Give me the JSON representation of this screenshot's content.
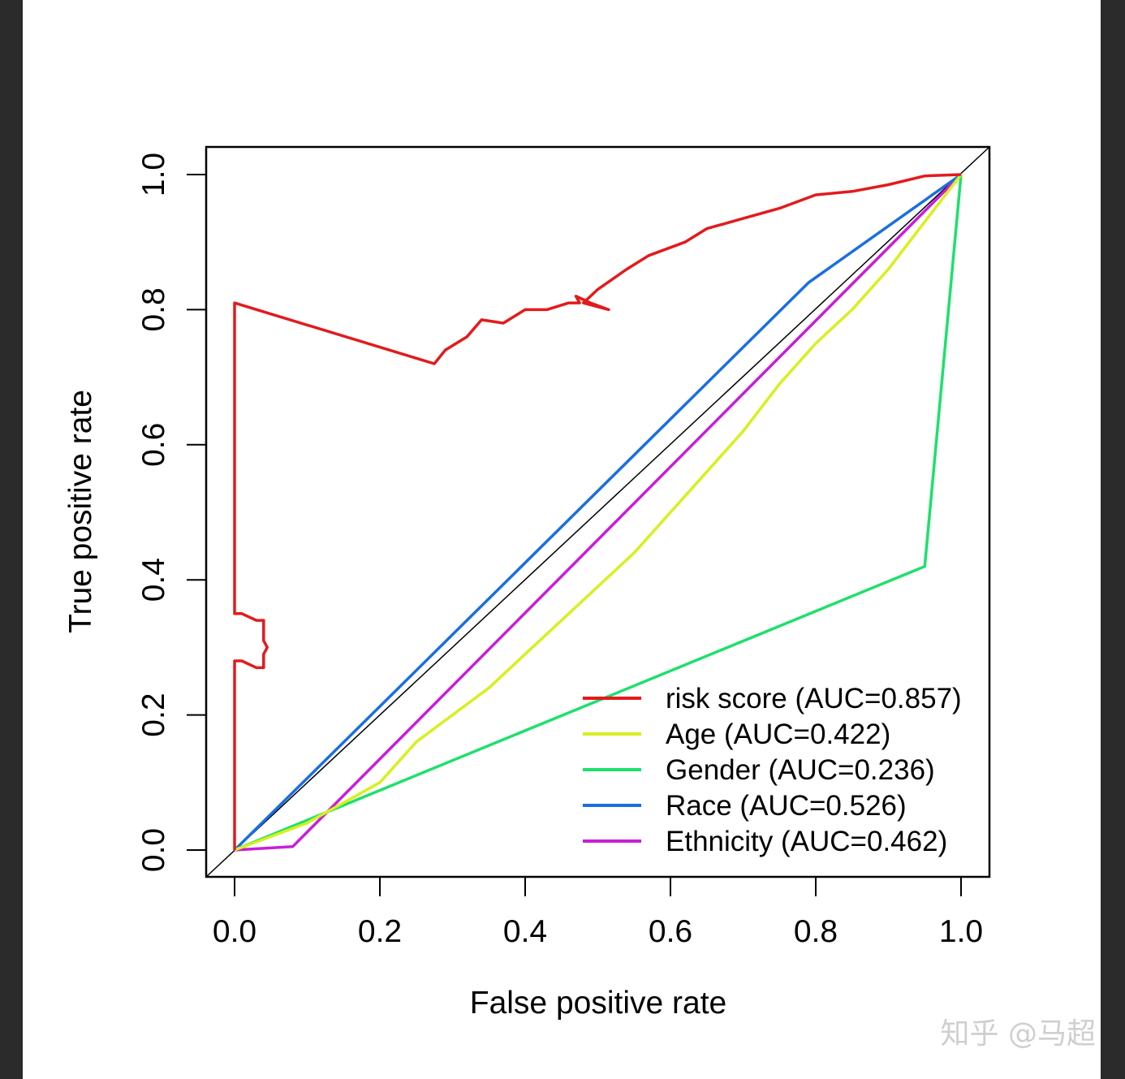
{
  "chart_data": {
    "type": "line",
    "title": "",
    "xlabel": "False positive rate",
    "ylabel": "True positive rate",
    "xlim": [
      0,
      1
    ],
    "ylim": [
      0,
      1
    ],
    "xticks": [
      0.0,
      0.2,
      0.4,
      0.6,
      0.8,
      1.0
    ],
    "yticks": [
      0.0,
      0.2,
      0.4,
      0.6,
      0.8,
      1.0
    ],
    "xtick_labels": [
      "0.0",
      "0.2",
      "0.4",
      "0.6",
      "0.8",
      "1.0"
    ],
    "ytick_labels": [
      "0.0",
      "0.2",
      "0.4",
      "0.6",
      "0.8",
      "1.0"
    ],
    "grid": false,
    "legend_position": "bottom-right",
    "reference_line": "diagonal",
    "series": [
      {
        "name": "risk score (AUC=0.857)",
        "color": "#e31a1c",
        "points": [
          [
            0,
            0
          ],
          [
            0,
            0.28
          ],
          [
            0.01,
            0.28
          ],
          [
            0.03,
            0.27
          ],
          [
            0.04,
            0.27
          ],
          [
            0.04,
            0.29
          ],
          [
            0.045,
            0.3
          ],
          [
            0.04,
            0.31
          ],
          [
            0.04,
            0.34
          ],
          [
            0.03,
            0.34
          ],
          [
            0.01,
            0.35
          ],
          [
            0,
            0.35
          ],
          [
            0,
            0.81
          ],
          [
            0.275,
            0.72
          ],
          [
            0.29,
            0.74
          ],
          [
            0.32,
            0.76
          ],
          [
            0.34,
            0.785
          ],
          [
            0.37,
            0.78
          ],
          [
            0.4,
            0.8
          ],
          [
            0.43,
            0.8
          ],
          [
            0.46,
            0.81
          ],
          [
            0.475,
            0.81
          ],
          [
            0.47,
            0.82
          ],
          [
            0.49,
            0.81
          ],
          [
            0.515,
            0.8
          ],
          [
            0.48,
            0.81
          ],
          [
            0.5,
            0.83
          ],
          [
            0.54,
            0.86
          ],
          [
            0.57,
            0.88
          ],
          [
            0.62,
            0.9
          ],
          [
            0.65,
            0.92
          ],
          [
            0.7,
            0.935
          ],
          [
            0.75,
            0.95
          ],
          [
            0.8,
            0.97
          ],
          [
            0.85,
            0.975
          ],
          [
            0.9,
            0.985
          ],
          [
            0.95,
            0.998
          ],
          [
            1,
            1
          ]
        ]
      },
      {
        "name": "Age (AUC=0.422)",
        "color": "#d7f01e",
        "points": [
          [
            0,
            0
          ],
          [
            0.1,
            0.04
          ],
          [
            0.2,
            0.1
          ],
          [
            0.25,
            0.16
          ],
          [
            0.3,
            0.2
          ],
          [
            0.35,
            0.24
          ],
          [
            0.4,
            0.29
          ],
          [
            0.45,
            0.34
          ],
          [
            0.5,
            0.39
          ],
          [
            0.55,
            0.44
          ],
          [
            0.6,
            0.5
          ],
          [
            0.65,
            0.56
          ],
          [
            0.7,
            0.62
          ],
          [
            0.75,
            0.69
          ],
          [
            0.8,
            0.75
          ],
          [
            0.85,
            0.8
          ],
          [
            0.9,
            0.86
          ],
          [
            0.95,
            0.93
          ],
          [
            1,
            1
          ]
        ]
      },
      {
        "name": "Gender (AUC=0.236)",
        "color": "#1ee06c",
        "points": [
          [
            0,
            0
          ],
          [
            0.95,
            0.42
          ],
          [
            1,
            1
          ]
        ]
      },
      {
        "name": "Race (AUC=0.526)",
        "color": "#1a6fe0",
        "points": [
          [
            0,
            0
          ],
          [
            0.79,
            0.84
          ],
          [
            1,
            1
          ]
        ]
      },
      {
        "name": "Ethnicity (AUC=0.462)",
        "color": "#c81ed8",
        "points": [
          [
            0,
            0
          ],
          [
            0.08,
            0.005
          ],
          [
            1,
            1
          ]
        ]
      }
    ]
  },
  "watermark": "知乎 @马超"
}
